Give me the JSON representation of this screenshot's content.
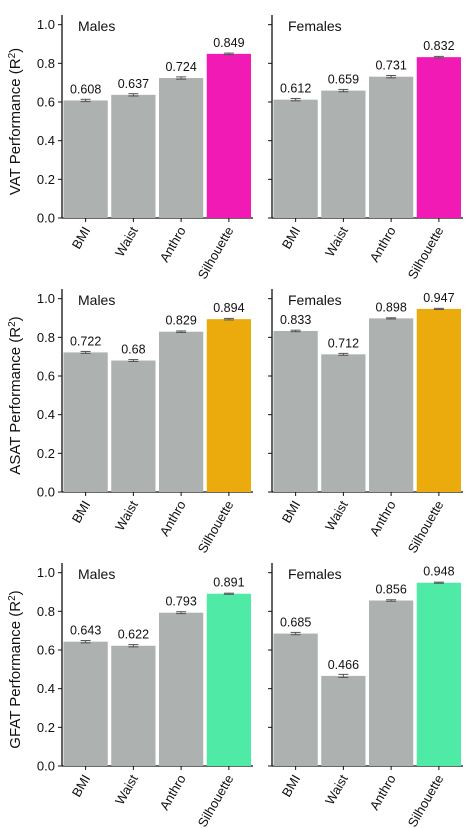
{
  "chart_data": [
    {
      "type": "bar",
      "title": "Males",
      "ylabel_prefix": "VAT Performance (R",
      "ylabel_sup": "2",
      "ylabel_suffix": ")",
      "categories": [
        "BMI",
        "Waist",
        "Anthro",
        "Silhouette"
      ],
      "values": [
        0.608,
        0.637,
        0.724,
        0.849
      ],
      "value_labels": [
        "0.608",
        "0.637",
        "0.724",
        "0.849"
      ],
      "errors": [
        0.006,
        0.006,
        0.006,
        0.004
      ],
      "ylim": [
        0,
        1.05
      ],
      "yticks": [
        0.0,
        0.2,
        0.4,
        0.6,
        0.8,
        1.0
      ],
      "ytick_labels": [
        "0.0",
        "0.2",
        "0.4",
        "0.6",
        "0.8",
        "1.0"
      ],
      "colors": [
        "#adb1b0",
        "#adb1b0",
        "#adb1b0",
        "#f21ab5"
      ]
    },
    {
      "type": "bar",
      "title": "Females",
      "categories": [
        "BMI",
        "Waist",
        "Anthro",
        "Silhouette"
      ],
      "values": [
        0.612,
        0.659,
        0.731,
        0.832
      ],
      "value_labels": [
        "0.612",
        "0.659",
        "0.731",
        "0.832"
      ],
      "errors": [
        0.006,
        0.006,
        0.006,
        0.004
      ],
      "ylim": [
        0,
        1.05
      ],
      "colors": [
        "#adb1b0",
        "#adb1b0",
        "#adb1b0",
        "#f21ab5"
      ]
    },
    {
      "type": "bar",
      "title": "Males",
      "ylabel_prefix": "ASAT Performance (R",
      "ylabel_sup": "2",
      "ylabel_suffix": ")",
      "categories": [
        "BMI",
        "Waist",
        "Anthro",
        "Silhouette"
      ],
      "values": [
        0.722,
        0.68,
        0.829,
        0.894
      ],
      "value_labels": [
        "0.722",
        "0.68",
        "0.829",
        "0.894"
      ],
      "errors": [
        0.005,
        0.005,
        0.004,
        0.004
      ],
      "ylim": [
        0,
        1.05
      ],
      "yticks": [
        0.0,
        0.2,
        0.4,
        0.6,
        0.8,
        1.0
      ],
      "ytick_labels": [
        "0.0",
        "0.2",
        "0.4",
        "0.6",
        "0.8",
        "1.0"
      ],
      "colors": [
        "#adb1b0",
        "#adb1b0",
        "#adb1b0",
        "#ebab0c"
      ]
    },
    {
      "type": "bar",
      "title": "Females",
      "categories": [
        "BMI",
        "Waist",
        "Anthro",
        "Silhouette"
      ],
      "values": [
        0.833,
        0.712,
        0.898,
        0.947
      ],
      "value_labels": [
        "0.833",
        "0.712",
        "0.898",
        "0.947"
      ],
      "errors": [
        0.004,
        0.005,
        0.003,
        0.003
      ],
      "ylim": [
        0,
        1.05
      ],
      "colors": [
        "#adb1b0",
        "#adb1b0",
        "#adb1b0",
        "#ebab0c"
      ]
    },
    {
      "type": "bar",
      "title": "Males",
      "ylabel_prefix": "GFAT Performance (R",
      "ylabel_sup": "2",
      "ylabel_suffix": ")",
      "categories": [
        "BMI",
        "Waist",
        "Anthro",
        "Silhouette"
      ],
      "values": [
        0.643,
        0.622,
        0.793,
        0.891
      ],
      "value_labels": [
        "0.643",
        "0.622",
        "0.793",
        "0.891"
      ],
      "errors": [
        0.006,
        0.006,
        0.005,
        0.003
      ],
      "ylim": [
        0,
        1.05
      ],
      "yticks": [
        0.0,
        0.2,
        0.4,
        0.6,
        0.8,
        1.0
      ],
      "ytick_labels": [
        "0.0",
        "0.2",
        "0.4",
        "0.6",
        "0.8",
        "1.0"
      ],
      "colors": [
        "#adb1b0",
        "#adb1b0",
        "#adb1b0",
        "#4eeaa6"
      ]
    },
    {
      "type": "bar",
      "title": "Females",
      "categories": [
        "BMI",
        "Waist",
        "Anthro",
        "Silhouette"
      ],
      "values": [
        0.685,
        0.466,
        0.856,
        0.948
      ],
      "value_labels": [
        "0.685",
        "0.466",
        "0.856",
        "0.948"
      ],
      "errors": [
        0.006,
        0.008,
        0.004,
        0.003
      ],
      "ylim": [
        0,
        1.05
      ],
      "colors": [
        "#adb1b0",
        "#adb1b0",
        "#adb1b0",
        "#4eeaa6"
      ]
    }
  ]
}
